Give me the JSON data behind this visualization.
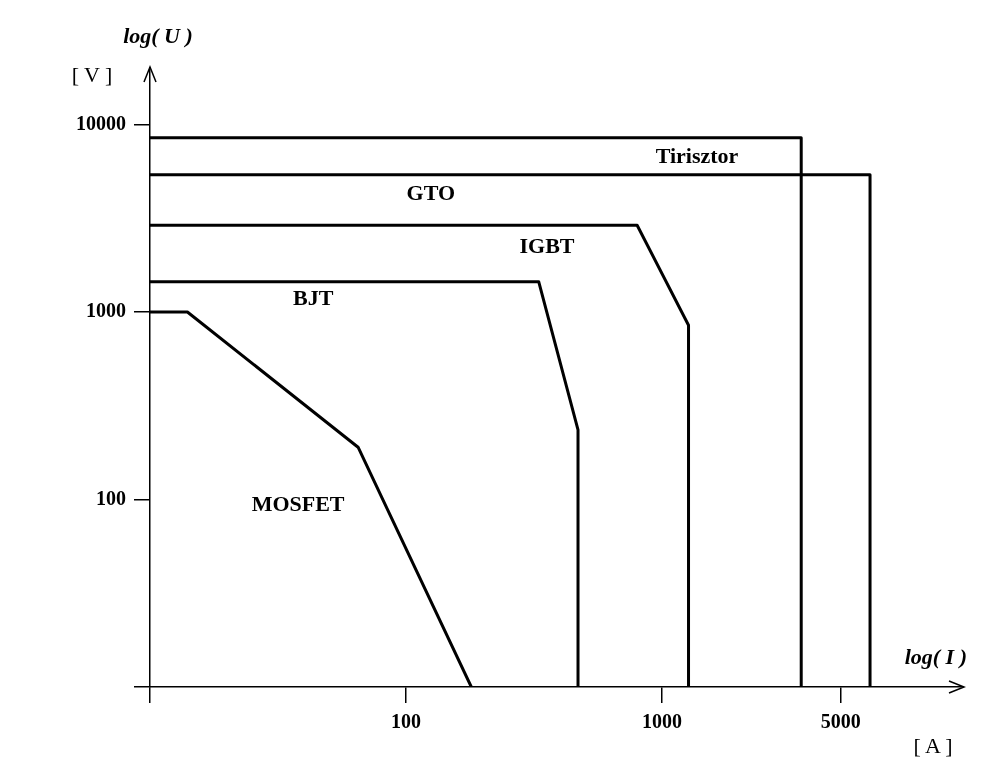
{
  "chart_data": {
    "type": "line",
    "log": "xy",
    "xlabel": "log( I )",
    "ylabel": "log( U )",
    "annotations": [
      "[ V ]",
      "[ A ]"
    ],
    "xlim": [
      10,
      15000
    ],
    "xticks": [
      {
        "value": 10,
        "label": null
      },
      100,
      1000,
      5000
    ],
    "ylim": [
      10,
      20000
    ],
    "yticks": [
      {
        "value": 10,
        "label": null
      },
      100,
      1000,
      10000
    ],
    "series": [
      {
        "name": "Tirisztor",
        "color": "#000000",
        "x": [
          10,
          3500,
          3500
        ],
        "values": [
          8500,
          8500,
          10
        ]
      },
      {
        "name": "GTO",
        "color": "#000000",
        "x": [
          10,
          6500,
          6500
        ],
        "values": [
          5400,
          5400,
          10
        ]
      },
      {
        "name": "IGBT",
        "color": "#000000",
        "x": [
          10,
          800,
          1270,
          1270
        ],
        "values": [
          2900,
          2900,
          850,
          10
        ]
      },
      {
        "name": "BJT",
        "color": "#000000",
        "x": [
          10,
          330,
          470,
          470
        ],
        "values": [
          1450,
          1450,
          235,
          10
        ]
      },
      {
        "name": "MOSFET",
        "color": "#000000",
        "x": [
          10,
          14,
          65,
          180
        ],
        "values": [
          1000,
          1000,
          190,
          10
        ]
      }
    ]
  }
}
